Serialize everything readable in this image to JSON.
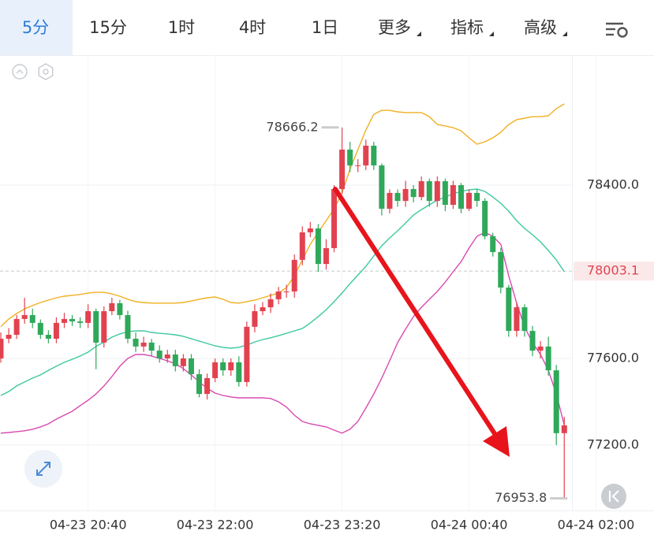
{
  "toolbar": {
    "tabs": [
      "5分",
      "15分",
      "1时",
      "4时",
      "1日",
      "更多",
      "指标",
      "高级"
    ]
  },
  "chart_data": {
    "type": "candlestick",
    "open": [
      77600,
      77691,
      77709,
      77782,
      77800,
      77764,
      77709,
      77691,
      77764,
      77782,
      77771,
      77764,
      77818,
      77673,
      77818,
      77855,
      77800,
      77691,
      77655,
      77673,
      77636,
      77600,
      77618,
      77564,
      77600,
      77527,
      77436,
      77509,
      77582,
      77545,
      77582,
      77491,
      77746,
      77818,
      77836,
      77873,
      77909,
      77909,
      78055,
      78182,
      78200,
      78036,
      78109,
      78382,
      78564,
      78491,
      78491,
      78582,
      78491,
      78291,
      78364,
      78327,
      78382,
      78345,
      78418,
      78327,
      78418,
      78309,
      78400,
      78291,
      78364,
      78327,
      78164,
      78091,
      77927,
      77727,
      77836,
      77727,
      77636,
      77655,
      77545,
      77255
    ],
    "high": [
      77720,
      77740,
      77800,
      77880,
      77830,
      77780,
      77730,
      77790,
      77810,
      77800,
      77790,
      77850,
      77830,
      77840,
      77880,
      77870,
      77820,
      77720,
      77700,
      77690,
      77660,
      77640,
      77640,
      77620,
      77620,
      77550,
      77530,
      77600,
      77600,
      77600,
      77610,
      77770,
      77850,
      77860,
      77900,
      77930,
      77940,
      78080,
      78210,
      78230,
      78220,
      78150,
      78400,
      78666.2,
      78600,
      78520,
      78610,
      78600,
      78500,
      78380,
      78380,
      78420,
      78400,
      78440,
      78430,
      78440,
      78430,
      78420,
      78410,
      78380,
      78380,
      78340,
      78180,
      78110,
      77940,
      77860,
      77850,
      77750,
      77680,
      77700,
      77570,
      77330
    ],
    "low": [
      77580,
      77670,
      77690,
      77760,
      77740,
      77690,
      77670,
      77670,
      77740,
      77750,
      77740,
      77740,
      77550,
      77650,
      77800,
      77780,
      77670,
      77630,
      77630,
      77610,
      77580,
      77580,
      77540,
      77540,
      77500,
      77420,
      77410,
      77490,
      77520,
      77520,
      77470,
      77470,
      77720,
      77800,
      77810,
      77850,
      77880,
      77880,
      78030,
      78160,
      78000,
      78010,
      78090,
      78360,
      78460,
      78460,
      78470,
      78470,
      78260,
      78270,
      78300,
      78300,
      78320,
      78330,
      78300,
      78300,
      78280,
      78290,
      78270,
      78280,
      78300,
      78150,
      78070,
      77900,
      77700,
      77700,
      77700,
      77610,
      77600,
      77520,
      77200,
      76953.8
    ],
    "close": [
      77691,
      77709,
      77782,
      77800,
      77764,
      77709,
      77691,
      77764,
      77782,
      77771,
      77764,
      77818,
      77673,
      77818,
      77855,
      77800,
      77691,
      77655,
      77673,
      77636,
      77600,
      77618,
      77564,
      77600,
      77527,
      77436,
      77509,
      77582,
      77545,
      77582,
      77491,
      77746,
      77818,
      77836,
      77873,
      77909,
      77909,
      78055,
      78182,
      78200,
      78036,
      78109,
      78382,
      78564,
      78491,
      78491,
      78582,
      78491,
      78291,
      78364,
      78327,
      78382,
      78345,
      78418,
      78327,
      78418,
      78309,
      78400,
      78291,
      78364,
      78327,
      78164,
      78091,
      77927,
      77727,
      77836,
      77727,
      77636,
      77655,
      77545,
      77255,
      77291
    ],
    "up_color": "#e2424f",
    "down_color": "#2fa85a",
    "series": [
      {
        "color": "#f0b020",
        "values": [
          77746,
          77782,
          77807,
          77829,
          77844,
          77858,
          77869,
          77880,
          77887,
          77891,
          77895,
          77902,
          77905,
          77905,
          77898,
          77887,
          77873,
          77862,
          77858,
          77855,
          77855,
          77855,
          77855,
          77858,
          77865,
          77873,
          77880,
          77884,
          77873,
          77858,
          77855,
          77862,
          77869,
          77880,
          77891,
          77902,
          77927,
          77982,
          78055,
          78127,
          78182,
          78236,
          78291,
          78364,
          78473,
          78564,
          78655,
          78727,
          78745,
          78745,
          78738,
          78735,
          78735,
          78735,
          78716,
          78680,
          78673,
          78665,
          78651,
          78618,
          78589,
          78600,
          78618,
          78644,
          78680,
          78702,
          78709,
          78716,
          78716,
          78720,
          78753,
          78775
        ]
      },
      {
        "color": "#3cc8a0",
        "values": [
          77429,
          77447,
          77473,
          77491,
          77509,
          77524,
          77545,
          77564,
          77582,
          77596,
          77611,
          77629,
          77655,
          77676,
          77698,
          77713,
          77724,
          77727,
          77727,
          77720,
          77716,
          77713,
          77709,
          77702,
          77691,
          77680,
          77669,
          77658,
          77651,
          77647,
          77651,
          77662,
          77676,
          77687,
          77695,
          77705,
          77716,
          77727,
          77738,
          77764,
          77793,
          77825,
          77862,
          77902,
          77945,
          77985,
          78025,
          78073,
          78120,
          78156,
          78189,
          78225,
          78262,
          78287,
          78309,
          78331,
          78345,
          78360,
          78371,
          78378,
          78382,
          78371,
          78345,
          78316,
          78280,
          78236,
          78200,
          78171,
          78138,
          78098,
          78055,
          78000
        ]
      },
      {
        "color": "#d84ab0",
        "values": [
          77255,
          77258,
          77262,
          77266,
          77273,
          77284,
          77298,
          77320,
          77338,
          77356,
          77382,
          77407,
          77436,
          77473,
          77516,
          77564,
          77600,
          77618,
          77618,
          77611,
          77600,
          77589,
          77575,
          77553,
          77524,
          77491,
          77462,
          77440,
          77429,
          77422,
          77418,
          77418,
          77418,
          77418,
          77415,
          77400,
          77375,
          77338,
          77309,
          77298,
          77291,
          77284,
          77269,
          77255,
          77273,
          77309,
          77371,
          77436,
          77509,
          77589,
          77673,
          77735,
          77793,
          77836,
          77873,
          77909,
          77953,
          78000,
          78047,
          78109,
          78164,
          78182,
          78164,
          78127,
          77982,
          77855,
          77745,
          77673,
          77618,
          77545,
          77436,
          77291
        ]
      }
    ],
    "ylim": [
      76898,
      79000
    ],
    "yticks": [
      {
        "value": 77200,
        "label": "77200.0"
      },
      {
        "value": 77600,
        "label": "77600.0"
      },
      {
        "value": 78400,
        "label": "78400.0"
      }
    ],
    "xticks": [
      {
        "value": 11,
        "label": "04-23 20:40"
      },
      {
        "value": 27,
        "label": "04-23 22:00"
      },
      {
        "value": 43,
        "label": "04-23 23:20"
      },
      {
        "value": 59,
        "label": "04-24 00:40"
      },
      {
        "value": 75,
        "label": "04-24 02:00"
      }
    ],
    "last_price": 78003.1,
    "grid": true
  }
}
